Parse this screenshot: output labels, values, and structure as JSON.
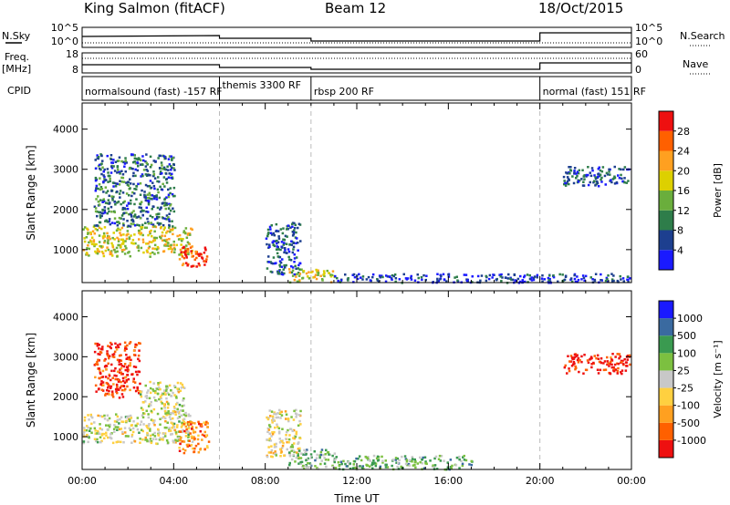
{
  "header": {
    "station": "King Salmon (fitACF)",
    "beam": "Beam 12",
    "date": "18/Oct/2015"
  },
  "summary": {
    "nsky_label": "N.Sky",
    "nsearch_label": "N.Search",
    "freq_label_1": "Freq.",
    "freq_label_2": "[MHz]",
    "nave_label": "Nave",
    "cpid_label": "CPID",
    "nsky_ticks": [
      "10^5",
      "10^0"
    ],
    "nsearch_ticks": [
      "10^5",
      "10^0"
    ],
    "freq_ticks": [
      "18",
      "8"
    ],
    "nave_ticks": [
      "60",
      "0"
    ],
    "cpid_segments": [
      {
        "label": "normalsound (fast) -157 RF",
        "start_h": 0.0,
        "end_h": 6.0
      },
      {
        "label": "themis 3300 RF",
        "start_h": 6.0,
        "end_h": 10.0
      },
      {
        "label": "rbsp 200 RF",
        "start_h": 10.0,
        "end_h": 20.0
      },
      {
        "label": "normal (fast) 151 RF",
        "start_h": 20.0,
        "end_h": 24.0
      }
    ]
  },
  "colors": {
    "power_scale": [
      "#1a1aff",
      "#1d3f8f",
      "#2e7d4a",
      "#6aae3c",
      "#ddd000",
      "#ffa020",
      "#ff6000",
      "#ee1010"
    ],
    "velocity_scale": [
      "#ee1010",
      "#ff6000",
      "#ffa020",
      "#ffd040",
      "#c8c8c8",
      "#7cc040",
      "#3a9a50",
      "#3a6aa0",
      "#1a1aff"
    ]
  },
  "chart_data": [
    {
      "type": "heatmap",
      "title": "",
      "ylabel": "Slant Range [km]",
      "xlabel": "",
      "x_ticks": [
        "00:00",
        "04:00",
        "08:00",
        "12:00",
        "16:00",
        "20:00",
        "00:00"
      ],
      "xlim_hours": [
        0,
        24
      ],
      "ylim_km": [
        180,
        4650
      ],
      "y_ticks": [
        1000,
        2000,
        3000,
        4000
      ],
      "colorbar_label": "Power [dB]",
      "colorbar_ticks": [
        "28",
        "24",
        "20",
        "16",
        "12",
        "8",
        "4"
      ],
      "colorbar_range": [
        0,
        32
      ],
      "regions": [
        {
          "t0": 0.0,
          "t1": 4.8,
          "r0": 850,
          "r1": 1600,
          "level": 0.55
        },
        {
          "t0": 0.5,
          "t1": 4.0,
          "r0": 1600,
          "r1": 3400,
          "level": 0.25
        },
        {
          "t0": 4.2,
          "t1": 5.5,
          "r0": 600,
          "r1": 1100,
          "level": 0.9
        },
        {
          "t0": 8.0,
          "t1": 9.5,
          "r0": 400,
          "r1": 1700,
          "level": 0.2
        },
        {
          "t0": 9.0,
          "t1": 11.0,
          "r0": 200,
          "r1": 550,
          "level": 0.55
        },
        {
          "t0": 11.0,
          "t1": 24.0,
          "r0": 200,
          "r1": 420,
          "level": 0.15
        },
        {
          "t0": 21.0,
          "t1": 23.9,
          "r0": 2600,
          "r1": 3100,
          "level": 0.2
        }
      ]
    },
    {
      "type": "heatmap",
      "title": "",
      "ylabel": "Slant Range [km]",
      "xlabel": "Time UT",
      "x_ticks": [
        "00:00",
        "04:00",
        "08:00",
        "12:00",
        "16:00",
        "20:00",
        "00:00"
      ],
      "xlim_hours": [
        0,
        24
      ],
      "ylim_km": [
        180,
        4650
      ],
      "y_ticks": [
        1000,
        2000,
        3000,
        4000
      ],
      "colorbar_label": "Velocity [m s⁻¹]",
      "colorbar_ticks": [
        "1000",
        "500",
        "100",
        "25",
        "-25",
        "-100",
        "-500",
        "-1000"
      ],
      "colorbar_range": [
        -1500,
        1500
      ],
      "regions": [
        {
          "t0": 0.0,
          "t1": 4.8,
          "r0": 850,
          "r1": 1600,
          "level": 0.5
        },
        {
          "t0": 0.5,
          "t1": 2.5,
          "r0": 2000,
          "r1": 3400,
          "level": 0.08
        },
        {
          "t0": 2.5,
          "t1": 4.5,
          "r0": 1600,
          "r1": 2400,
          "level": 0.5
        },
        {
          "t0": 4.2,
          "t1": 5.5,
          "r0": 600,
          "r1": 1400,
          "level": 0.25
        },
        {
          "t0": 8.0,
          "t1": 9.5,
          "r0": 500,
          "r1": 1700,
          "level": 0.45
        },
        {
          "t0": 9.0,
          "t1": 11.0,
          "r0": 200,
          "r1": 700,
          "level": 0.62
        },
        {
          "t0": 11.0,
          "t1": 17.0,
          "r0": 200,
          "r1": 550,
          "level": 0.65
        },
        {
          "t0": 21.0,
          "t1": 23.9,
          "r0": 2600,
          "r1": 3100,
          "level": 0.05
        }
      ]
    }
  ]
}
